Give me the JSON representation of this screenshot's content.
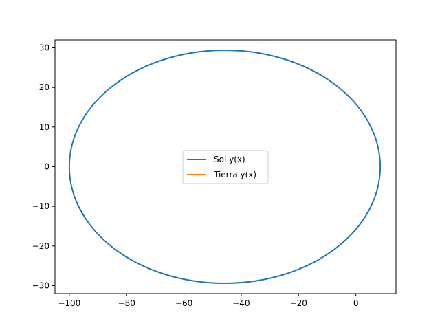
{
  "chart_data": {
    "type": "line",
    "title": "",
    "xlabel": "",
    "ylabel": "",
    "xlim": [
      -105,
      14
    ],
    "ylim": [
      -32,
      32
    ],
    "x_ticks": [
      -100,
      -80,
      -60,
      -40,
      -20,
      0
    ],
    "x_tick_labels": [
      "−100",
      "−80",
      "−60",
      "−40",
      "−20",
      "0"
    ],
    "y_ticks": [
      -30,
      -20,
      -10,
      0,
      10,
      20,
      30
    ],
    "y_tick_labels": [
      "−30",
      "−20",
      "−10",
      "0",
      "10",
      "20",
      "30"
    ],
    "grid": false,
    "legend_position": "center",
    "series": [
      {
        "name": "Sol y(x)",
        "color": "#1f77b4",
        "shape": "ellipse",
        "x_min": -100,
        "x_max": 8.5,
        "y_min": -29.4,
        "y_max": 29.4
      },
      {
        "name": "Tierra y(x)",
        "color": "#ff7f0e",
        "values": []
      }
    ]
  }
}
